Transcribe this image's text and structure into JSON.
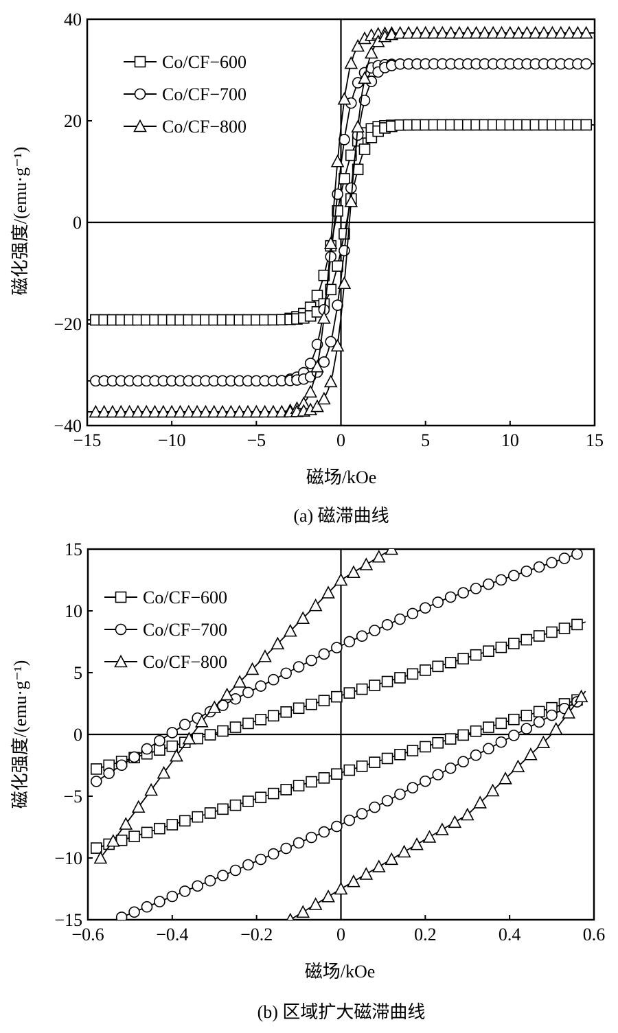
{
  "chart_data": [
    {
      "id": "a",
      "type": "line",
      "caption": "(a)  磁滞曲线",
      "xlabel": "磁场/kOe",
      "ylabel": "磁化强度/(emu·g⁻¹)",
      "xlim": [
        -15,
        15
      ],
      "ylim": [
        -40,
        40
      ],
      "xticks": [
        -15,
        -10,
        -5,
        0,
        5,
        10,
        15
      ],
      "xtick_labels": [
        "−15",
        "−10",
        "−5",
        "0",
        "5",
        "10",
        "15"
      ],
      "yticks": [
        -40,
        -20,
        0,
        20,
        40
      ],
      "ytick_labels": [
        "−40",
        "−20",
        "0",
        "20",
        "40"
      ],
      "legend_position": "top-left",
      "series": [
        {
          "name": "Co/CF−600",
          "marker": "square",
          "Ms": 19.2,
          "Mr": 4.0,
          "Hc": 0.33,
          "a": 1.1
        },
        {
          "name": "Co/CF−700",
          "marker": "circle",
          "Ms": 31.2,
          "Mr": 7.2,
          "Hc": 0.38,
          "a": 1.0
        },
        {
          "name": "Co/CF−800",
          "marker": "triangle",
          "Ms": 37.3,
          "Mr": 12.5,
          "Hc": 0.5,
          "a": 0.9
        }
      ]
    },
    {
      "id": "b",
      "type": "line",
      "caption": "(b)  区域扩大磁滞曲线",
      "xlabel": "磁场/kOe",
      "ylabel": "磁化强度/(emu·g⁻¹)",
      "xlim": [
        -0.6,
        0.6
      ],
      "ylim": [
        -15,
        15
      ],
      "xticks": [
        -0.6,
        -0.4,
        -0.2,
        0,
        0.2,
        0.4,
        0.6
      ],
      "xtick_labels": [
        "−0.6",
        "−0.4",
        "−0.2",
        "0",
        "0.2",
        "0.4",
        "0.6"
      ],
      "yticks": [
        -15,
        -10,
        -5,
        0,
        5,
        10,
        15
      ],
      "ytick_labels": [
        "−15",
        "−10",
        "−5",
        "0",
        "5",
        "10",
        "15"
      ],
      "legend_position": "top-left",
      "series": [
        {
          "name": "Co/CF−600",
          "marker": "square",
          "upper": {
            "x": [
              -0.58,
              0.58
            ],
            "y": [
              -2.8,
              9.1
            ]
          },
          "lower": {
            "x": [
              -0.58,
              0.58
            ],
            "y": [
              -9.2,
              3.0
            ]
          }
        },
        {
          "name": "Co/CF−700",
          "marker": "circle",
          "upper": {
            "x": [
              -0.58,
              -0.37,
              0,
              0.25,
              0.56
            ],
            "y": [
              -3.8,
              0.8,
              7.2,
              11.0,
              14.6
            ]
          },
          "lower": {
            "x": [
              -0.52,
              -0.25,
              0,
              0.37,
              0.58
            ],
            "y": [
              -14.8,
              -11.0,
              -7.3,
              -0.8,
              3.0
            ]
          }
        },
        {
          "name": "Co/CF−800",
          "marker": "triangle",
          "upper": {
            "x": [
              -0.57,
              -0.45,
              -0.32,
              0,
              0.12
            ],
            "y": [
              -10.0,
              -4.5,
              1.5,
              12.5,
              15.0
            ]
          },
          "lower": {
            "x": [
              -0.12,
              0,
              0.3,
              0.5,
              0.58
            ],
            "y": [
              -15.0,
              -12.5,
              -6.5,
              0,
              3.5
            ]
          }
        }
      ]
    }
  ]
}
